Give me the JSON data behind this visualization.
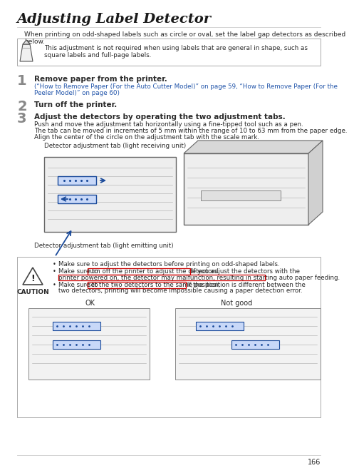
{
  "title": "Adjusting Label Detector",
  "intro_text": "When printing on odd-shaped labels such as circle or oval, set the label gap detectors as described below.",
  "note_text": "This adjustment is not required when using labels that are general in shape, such as square labels and full-page labels.",
  "step1_num": "1",
  "step1_bold": "Remove paper from the printer.",
  "step1_sub": "(“How to Remove Paper (For the Auto Cutter Model)” on page 59, “How to Remove Paper (For the Peeler Model)” on page 60)",
  "step2_num": "2",
  "step2_bold": "Turn off the printer.",
  "step3_num": "3",
  "step3_bold": "Adjust the detectors by operating the two adjustment tabs.",
  "step3_sub1": "Push and move the adjustment tab horizontally using a fine-tipped tool such as a pen.",
  "step3_sub2": "The tab can be moved in increments of 5 mm within the range of 10 to 63 mm from the paper edge.",
  "step3_sub3": "Align the center of the circle on the adjustment tab with the scale mark.",
  "label_top": "Detector adjustment tab (light receiving unit)",
  "label_bottom": "Detector adjustment tab (light emitting unit)",
  "bullet1": "Make sure to adjust the detectors before printing on odd-shaped labels.",
  "bullet2a": "Make sure to ",
  "bullet2b": "turn off the printer to adjust the detectors.",
  "bullet2c": " If you adjust the detectors with the",
  "bullet2d": "printer powered on, the detector may malfunction, resulting in starting auto paper feeding.",
  "bullet3a": "Make sure to ",
  "bullet3b": "set the two detectors to the same position.",
  "bullet3c": " If the position is different between the",
  "bullet3d": "two detectors, printing will become impossible causing a paper detection error.",
  "ok_label": "OK",
  "not_good_label": "Not good",
  "page_num": "166",
  "bg_color": "#ffffff",
  "title_color": "#1a1a1a",
  "text_color": "#2a2a2a",
  "step_num_color": "#888888",
  "link_color": "#2255aa",
  "highlight_color": "#cc0000",
  "border_color": "#aaaaaa",
  "blue_color": "#1a4a9a",
  "gray_line": "#cccccc"
}
